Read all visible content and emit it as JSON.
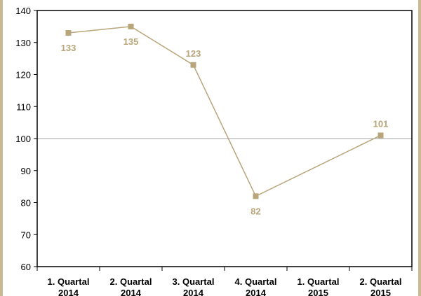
{
  "chart_data": {
    "type": "line",
    "title": "",
    "xlabel": "",
    "ylabel": "",
    "categories": [
      "1. Quartal 2014",
      "2. Quartal 2014",
      "3. Quartal 2014",
      "4. Quartal 2014",
      "1. Quartal 2015",
      "2. Quartal 2015"
    ],
    "category_lines": [
      [
        "1. Quartal",
        "2014"
      ],
      [
        "2. Quartal",
        "2014"
      ],
      [
        "3. Quartal",
        "2014"
      ],
      [
        "4. Quartal",
        "2014"
      ],
      [
        "1. Quartal",
        "2015"
      ],
      [
        "2. Quartal",
        "2015"
      ]
    ],
    "series": [
      {
        "values": [
          133,
          135,
          123,
          82,
          null,
          101
        ],
        "labels": [
          "133",
          "135",
          "123",
          "82",
          "",
          "101"
        ]
      }
    ],
    "ylim": [
      60,
      140
    ],
    "yticks": [
      60,
      70,
      80,
      90,
      100,
      110,
      120,
      130,
      140
    ],
    "reference_line": 100,
    "grid": false,
    "legend": "none",
    "colors": {
      "series": "#b8a57a",
      "reference": "#a6a6a6",
      "axis": "#000000"
    }
  }
}
